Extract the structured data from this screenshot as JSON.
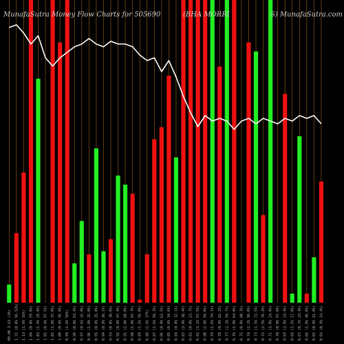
{
  "chart_data": {
    "type": "bar",
    "title_left": "MunafaSutra  Money Flow  Charts for 505690",
    "title_middle": "(BHA      MORRI",
    "title_right": "S) MunafaSutra.com",
    "ylim": [
      0,
      100
    ],
    "colors": {
      "up": "#22ee22",
      "down": "#ee1111",
      "line": "#ffffff",
      "separator": "#a0641e",
      "background": "#000000"
    },
    "categories": [
      "09.00 3.63 (3%)",
      "1.71 (0.0% 96.52%)",
      "1.13 (1.6% 16%)",
      "1.04 (0.0% 59.0%)",
      "1.03 (1.9% 25.0%)",
      "1.02 (0.0% 97.5%)",
      "1.01 (1.0% 37.0%)",
      "1.00 (0.0% 96.8%)",
      "0.99 (1.6% 56%)",
      "0.98 (0.0% 53.4%)",
      "0.97 (0.6% 16.0%)",
      "0.96 (1.0% 25.0%)",
      "0.95 (0.0% 25.0%)",
      "0.94 (0.8% 36.1%)",
      "0.93 (0.0% 30.0%)",
      "0.92 (0.8% 47.4%)",
      "0.91 (2.0% 60.0%)",
      "0.90 (1.0% 97.7%)",
      "0.89 (1.5% 56.0%)",
      "0.88 (2.6% 37%)",
      "0.87 (1.6% 58.3%)",
      "0.86 (0.0% 62.5%)",
      "0.85 (0.0% 34.6%)",
      "0.84 (0.0% 32.1%)",
      "0.83 (2.0% 38.4%)",
      "0.82 (0.0% 23.7%)",
      "0.81 (1.2% 97.5%)",
      "0.80 (2.0% 94.0%)",
      "0.79 (1.6% 74.1%)",
      "0.78 (0.0% 82.2%)",
      "0.77 (2.2% 94.7%)",
      "0.76 (1.0% 64.0%)",
      "0.75 (0.0% 80.3%)",
      "0.74 (2.2% 96.0%)",
      "0.73 (1.5% 72.5%)",
      "0.72 (2.5% 76.2%)",
      "0.71 (1.0% 24.0%)",
      "0.70 (0.0% 97.0%)",
      "0.69 (2.0% 14.4%)",
      "0.68 (1.5% 17.0%)",
      "0.67 (0.7% 23.4%)",
      "0.66 (1.0% 46.0%)",
      "0.65 (0.0% 21.0%)",
      "0.64 (0.9% 14.4%)"
    ],
    "series": [
      {
        "bars": [
          {
            "value": 6,
            "dir": "up"
          },
          {
            "value": 23,
            "dir": "down"
          },
          {
            "value": 43,
            "dir": "down"
          },
          {
            "value": 100,
            "dir": "down"
          },
          {
            "value": 74,
            "dir": "up"
          },
          {
            "value": 0,
            "dir": "down"
          },
          {
            "value": 100,
            "dir": "down"
          },
          {
            "value": 86,
            "dir": "down"
          },
          {
            "value": 100,
            "dir": "down"
          },
          {
            "value": 13,
            "dir": "up"
          },
          {
            "value": 27,
            "dir": "up"
          },
          {
            "value": 16,
            "dir": "down"
          },
          {
            "value": 51,
            "dir": "up"
          },
          {
            "value": 17,
            "dir": "up"
          },
          {
            "value": 21,
            "dir": "down"
          },
          {
            "value": 42,
            "dir": "up"
          },
          {
            "value": 39,
            "dir": "up"
          },
          {
            "value": 36,
            "dir": "down"
          },
          {
            "value": 1,
            "dir": "down"
          },
          {
            "value": 16,
            "dir": "down"
          },
          {
            "value": 54,
            "dir": "down"
          },
          {
            "value": 58,
            "dir": "down"
          },
          {
            "value": 75,
            "dir": "down"
          },
          {
            "value": 48,
            "dir": "up"
          },
          {
            "value": 100,
            "dir": "down"
          },
          {
            "value": 100,
            "dir": "down"
          },
          {
            "value": 100,
            "dir": "down"
          },
          {
            "value": 100,
            "dir": "down"
          },
          {
            "value": 100,
            "dir": "up"
          },
          {
            "value": 78,
            "dir": "down"
          },
          {
            "value": 100,
            "dir": "up"
          },
          {
            "value": 100,
            "dir": "down"
          },
          {
            "value": 0,
            "dir": "down"
          },
          {
            "value": 86,
            "dir": "down"
          },
          {
            "value": 83,
            "dir": "up"
          },
          {
            "value": 29,
            "dir": "down"
          },
          {
            "value": 100,
            "dir": "up"
          },
          {
            "value": 0,
            "dir": "down"
          },
          {
            "value": 69,
            "dir": "down"
          },
          {
            "value": 3,
            "dir": "up"
          },
          {
            "value": 55,
            "dir": "up"
          },
          {
            "value": 3,
            "dir": "down"
          },
          {
            "value": 15,
            "dir": "up"
          },
          {
            "value": 40,
            "dir": "down"
          }
        ]
      },
      {
        "line": [
          100,
          101,
          98,
          94,
          97,
          89,
          86,
          89,
          91,
          93,
          94,
          96,
          94,
          93,
          95,
          94,
          94,
          93,
          90,
          88,
          89,
          84,
          88,
          82,
          75,
          69,
          64,
          68,
          66,
          67,
          66,
          63,
          66,
          67,
          65,
          67,
          66,
          65,
          67,
          66,
          68,
          67,
          68,
          65
        ]
      }
    ]
  }
}
